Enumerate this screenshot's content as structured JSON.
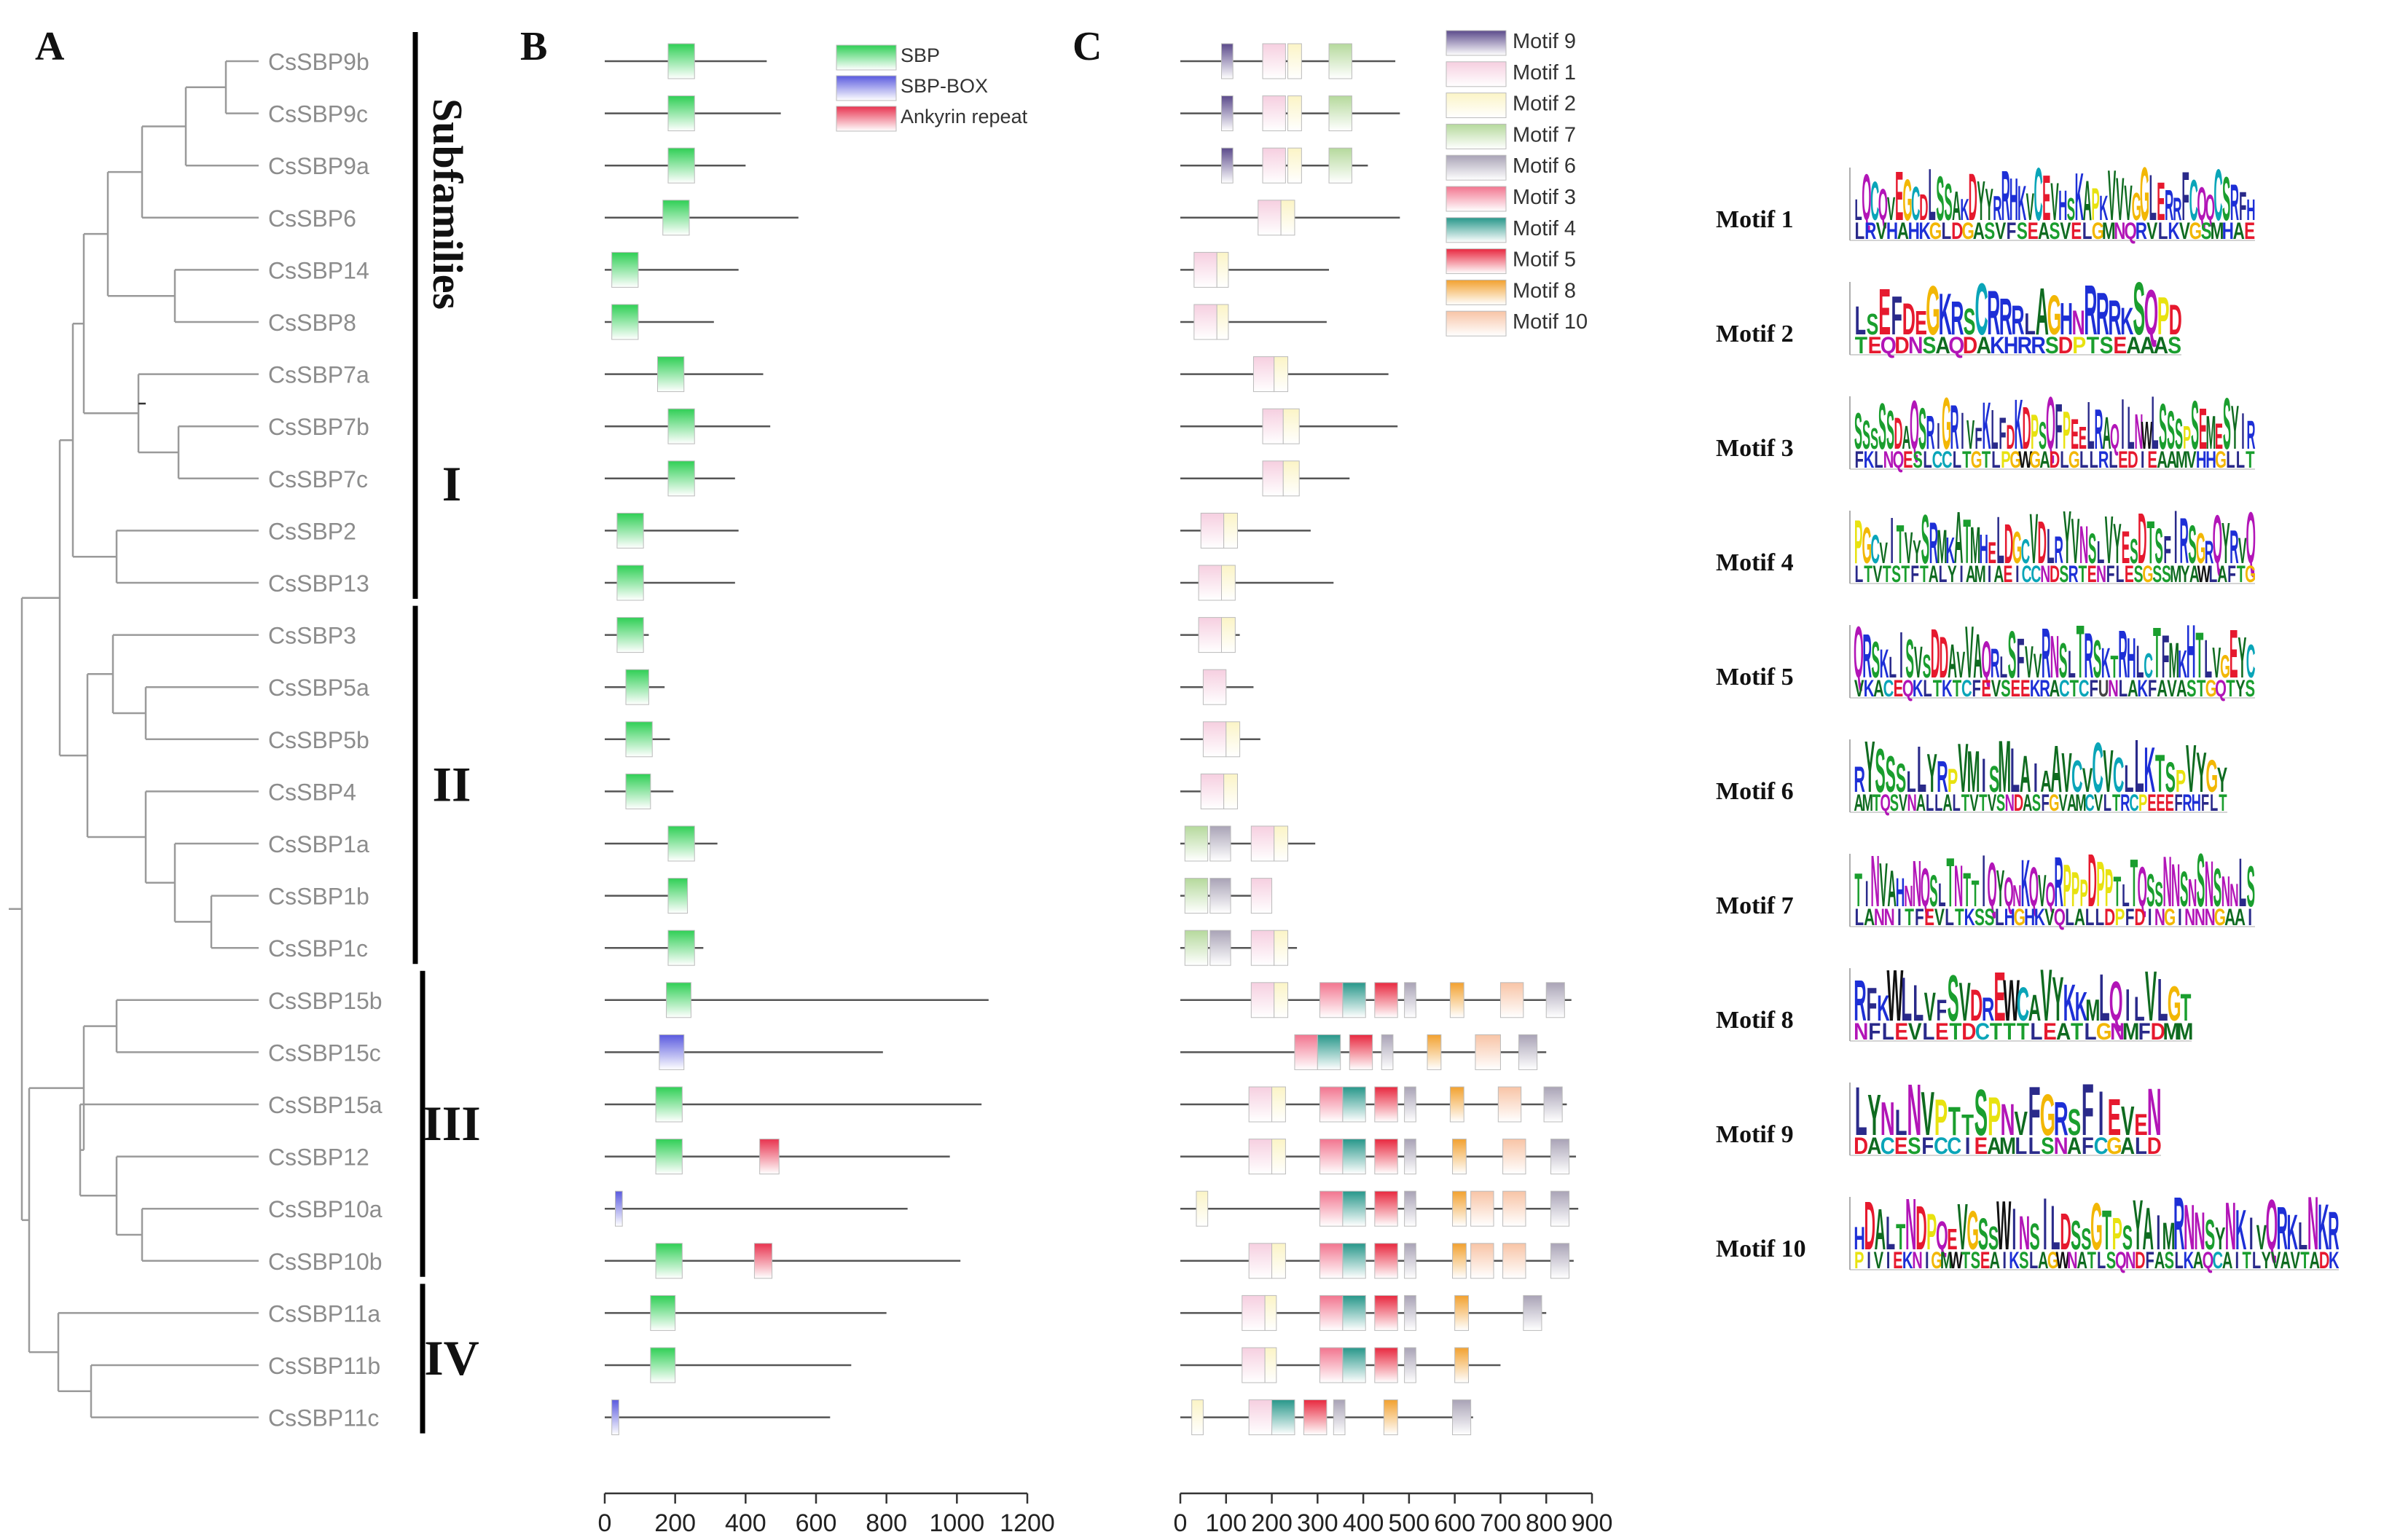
{
  "panels": {
    "A": "A",
    "B": "B",
    "C": "C"
  },
  "subfamily_title": "Subfamilies",
  "subfamilies": [
    {
      "label": "I",
      "first": 0,
      "last": 10
    },
    {
      "label": "II",
      "first": 11,
      "last": 17
    },
    {
      "label": "III",
      "first": 18,
      "last": 23
    },
    {
      "label": "IV",
      "first": 24,
      "last": 26
    }
  ],
  "genes": [
    "CsSBP9b",
    "CsSBP9c",
    "CsSBP9a",
    "CsSBP6",
    "CsSBP14",
    "CsSBP8",
    "CsSBP7a",
    "CsSBP7b",
    "CsSBP7c",
    "CsSBP2",
    "CsSBP13",
    "CsSBP3",
    "CsSBP5a",
    "CsSBP5b",
    "CsSBP4",
    "CsSBP1a",
    "CsSBP1b",
    "CsSBP1c",
    "CsSBP15b",
    "CsSBP15c",
    "CsSBP15a",
    "CsSBP12",
    "CsSBP10a",
    "CsSBP10b",
    "CsSBP11a",
    "CsSBP11b",
    "CsSBP11c"
  ],
  "domain_legend": [
    {
      "name": "SBP",
      "color": "#2fcf55"
    },
    {
      "name": "SBP-BOX",
      "color": "#5a5adf"
    },
    {
      "name": "Ankyrin repeat",
      "color": "#e8334f"
    }
  ],
  "domain_axis": {
    "min": 0,
    "max": 1200,
    "ticks": [
      "0",
      "200",
      "400",
      "600",
      "800",
      "1000",
      "1200"
    ]
  },
  "domain_data": [
    {
      "len": 460,
      "domains": [
        [
          "SBP",
          180,
          255
        ]
      ]
    },
    {
      "len": 500,
      "domains": [
        [
          "SBP",
          180,
          255
        ]
      ]
    },
    {
      "len": 400,
      "domains": [
        [
          "SBP",
          180,
          255
        ]
      ]
    },
    {
      "len": 550,
      "domains": [
        [
          "SBP",
          165,
          240
        ]
      ]
    },
    {
      "len": 380,
      "domains": [
        [
          "SBP",
          20,
          95
        ]
      ]
    },
    {
      "len": 310,
      "domains": [
        [
          "SBP",
          20,
          95
        ]
      ]
    },
    {
      "len": 450,
      "domains": [
        [
          "SBP",
          150,
          225
        ]
      ]
    },
    {
      "len": 470,
      "domains": [
        [
          "SBP",
          180,
          255
        ]
      ]
    },
    {
      "len": 370,
      "domains": [
        [
          "SBP",
          180,
          255
        ]
      ]
    },
    {
      "len": 380,
      "domains": [
        [
          "SBP",
          35,
          110
        ]
      ]
    },
    {
      "len": 370,
      "domains": [
        [
          "SBP",
          35,
          110
        ]
      ]
    },
    {
      "len": 125,
      "domains": [
        [
          "SBP",
          35,
          110
        ]
      ]
    },
    {
      "len": 170,
      "domains": [
        [
          "SBP",
          60,
          125
        ]
      ]
    },
    {
      "len": 185,
      "domains": [
        [
          "SBP",
          60,
          135
        ]
      ]
    },
    {
      "len": 195,
      "domains": [
        [
          "SBP",
          60,
          130
        ]
      ]
    },
    {
      "len": 320,
      "domains": [
        [
          "SBP",
          180,
          255
        ]
      ]
    },
    {
      "len": 230,
      "domains": [
        [
          "SBP",
          180,
          235
        ]
      ]
    },
    {
      "len": 280,
      "domains": [
        [
          "SBP",
          180,
          255
        ]
      ]
    },
    {
      "len": 1090,
      "domains": [
        [
          "SBP",
          175,
          245
        ]
      ]
    },
    {
      "len": 790,
      "domains": [
        [
          "SBP-BOX",
          155,
          225
        ]
      ]
    },
    {
      "len": 1070,
      "domains": [
        [
          "SBP",
          145,
          220
        ]
      ]
    },
    {
      "len": 980,
      "domains": [
        [
          "SBP",
          145,
          220
        ],
        [
          "Ankyrin repeat",
          440,
          495
        ]
      ]
    },
    {
      "len": 860,
      "domains": [
        [
          "SBP-BOX",
          30,
          50
        ]
      ]
    },
    {
      "len": 1010,
      "domains": [
        [
          "SBP",
          145,
          220
        ],
        [
          "Ankyrin repeat",
          425,
          475
        ]
      ]
    },
    {
      "len": 800,
      "domains": [
        [
          "SBP",
          130,
          200
        ]
      ]
    },
    {
      "len": 700,
      "domains": [
        [
          "SBP",
          130,
          200
        ]
      ]
    },
    {
      "len": 640,
      "domains": [
        [
          "SBP-BOX",
          20,
          40
        ]
      ]
    }
  ],
  "motif_legend": [
    {
      "name": "Motif 9",
      "color": "#5b4a8b"
    },
    {
      "name": "Motif 1",
      "color": "#f6cfe0"
    },
    {
      "name": "Motif 2",
      "color": "#fbf4c6"
    },
    {
      "name": "Motif 7",
      "color": "#b5d99c"
    },
    {
      "name": "Motif 6",
      "color": "#a9a3b6"
    },
    {
      "name": "Motif 3",
      "color": "#f2758f"
    },
    {
      "name": "Motif 4",
      "color": "#27978a"
    },
    {
      "name": "Motif 5",
      "color": "#e8283f"
    },
    {
      "name": "Motif 8",
      "color": "#f2a12f"
    },
    {
      "name": "Motif 10",
      "color": "#f8c4a6"
    }
  ],
  "motif_axis": {
    "min": 0,
    "max": 900,
    "ticks": [
      "0",
      "100",
      "200",
      "300",
      "400",
      "500",
      "600",
      "700",
      "800",
      "900"
    ]
  },
  "motif_data": [
    {
      "len": 470,
      "motifs": [
        [
          "Motif 9",
          90,
          115
        ],
        [
          "Motif 1",
          180,
          230
        ],
        [
          "Motif 2",
          235,
          265
        ],
        [
          "Motif 7",
          325,
          375
        ]
      ]
    },
    {
      "len": 480,
      "motifs": [
        [
          "Motif 9",
          90,
          115
        ],
        [
          "Motif 1",
          180,
          230
        ],
        [
          "Motif 2",
          235,
          265
        ],
        [
          "Motif 7",
          325,
          375
        ]
      ]
    },
    {
      "len": 410,
      "motifs": [
        [
          "Motif 9",
          90,
          115
        ],
        [
          "Motif 1",
          180,
          230
        ],
        [
          "Motif 2",
          235,
          265
        ],
        [
          "Motif 7",
          325,
          375
        ]
      ]
    },
    {
      "len": 480,
      "motifs": [
        [
          "Motif 1",
          170,
          220
        ],
        [
          "Motif 2",
          220,
          250
        ]
      ]
    },
    {
      "len": 325,
      "motifs": [
        [
          "Motif 1",
          30,
          80
        ],
        [
          "Motif 2",
          80,
          105
        ]
      ]
    },
    {
      "len": 320,
      "motifs": [
        [
          "Motif 1",
          30,
          80
        ],
        [
          "Motif 2",
          80,
          105
        ]
      ]
    },
    {
      "len": 455,
      "motifs": [
        [
          "Motif 1",
          160,
          205
        ],
        [
          "Motif 2",
          205,
          235
        ]
      ]
    },
    {
      "len": 475,
      "motifs": [
        [
          "Motif 1",
          180,
          225
        ],
        [
          "Motif 2",
          225,
          260
        ]
      ]
    },
    {
      "len": 370,
      "motifs": [
        [
          "Motif 1",
          180,
          225
        ],
        [
          "Motif 2",
          225,
          260
        ]
      ]
    },
    {
      "len": 285,
      "motifs": [
        [
          "Motif 1",
          45,
          95
        ],
        [
          "Motif 2",
          95,
          125
        ]
      ]
    },
    {
      "len": 335,
      "motifs": [
        [
          "Motif 1",
          40,
          90
        ],
        [
          "Motif 2",
          90,
          120
        ]
      ]
    },
    {
      "len": 130,
      "motifs": [
        [
          "Motif 1",
          40,
          90
        ],
        [
          "Motif 2",
          90,
          120
        ]
      ]
    },
    {
      "len": 160,
      "motifs": [
        [
          "Motif 1",
          50,
          100
        ]
      ]
    },
    {
      "len": 175,
      "motifs": [
        [
          "Motif 1",
          50,
          100
        ],
        [
          "Motif 2",
          100,
          130
        ]
      ]
    },
    {
      "len": 125,
      "motifs": [
        [
          "Motif 1",
          45,
          95
        ],
        [
          "Motif 2",
          95,
          125
        ]
      ]
    },
    {
      "len": 295,
      "motifs": [
        [
          "Motif 7",
          10,
          60
        ],
        [
          "Motif 6",
          65,
          110
        ],
        [
          "Motif 1",
          155,
          205
        ],
        [
          "Motif 2",
          205,
          235
        ]
      ]
    },
    {
      "len": 200,
      "motifs": [
        [
          "Motif 7",
          10,
          60
        ],
        [
          "Motif 6",
          65,
          110
        ],
        [
          "Motif 1",
          155,
          200
        ]
      ]
    },
    {
      "len": 255,
      "motifs": [
        [
          "Motif 7",
          10,
          60
        ],
        [
          "Motif 6",
          65,
          110
        ],
        [
          "Motif 1",
          155,
          205
        ],
        [
          "Motif 2",
          205,
          235
        ]
      ]
    },
    {
      "len": 855,
      "motifs": [
        [
          "Motif 1",
          155,
          205
        ],
        [
          "Motif 2",
          205,
          235
        ],
        [
          "Motif 3",
          305,
          355
        ],
        [
          "Motif 4",
          355,
          405
        ],
        [
          "Motif 5",
          425,
          475
        ],
        [
          "Motif 6",
          490,
          515
        ],
        [
          "Motif 8",
          590,
          620
        ],
        [
          "Motif 10",
          700,
          750
        ],
        [
          "Motif 6",
          800,
          840
        ]
      ]
    },
    {
      "len": 800,
      "motifs": [
        [
          "Motif 3",
          250,
          300
        ],
        [
          "Motif 4",
          300,
          350
        ],
        [
          "Motif 5",
          370,
          420
        ],
        [
          "Motif 6",
          440,
          465
        ],
        [
          "Motif 8",
          540,
          570
        ],
        [
          "Motif 10",
          645,
          700
        ],
        [
          "Motif 6",
          740,
          780
        ]
      ]
    },
    {
      "len": 845,
      "motifs": [
        [
          "Motif 1",
          150,
          200
        ],
        [
          "Motif 2",
          200,
          230
        ],
        [
          "Motif 3",
          305,
          355
        ],
        [
          "Motif 4",
          355,
          405
        ],
        [
          "Motif 5",
          425,
          475
        ],
        [
          "Motif 6",
          490,
          515
        ],
        [
          "Motif 8",
          590,
          620
        ],
        [
          "Motif 10",
          695,
          745
        ],
        [
          "Motif 6",
          795,
          835
        ]
      ]
    },
    {
      "len": 865,
      "motifs": [
        [
          "Motif 1",
          150,
          200
        ],
        [
          "Motif 2",
          200,
          230
        ],
        [
          "Motif 3",
          305,
          355
        ],
        [
          "Motif 4",
          355,
          405
        ],
        [
          "Motif 5",
          425,
          475
        ],
        [
          "Motif 6",
          490,
          515
        ],
        [
          "Motif 8",
          595,
          625
        ],
        [
          "Motif 10",
          705,
          755
        ],
        [
          "Motif 6",
          810,
          850
        ]
      ]
    },
    {
      "len": 870,
      "motifs": [
        [
          "Motif 2",
          35,
          60
        ],
        [
          "Motif 3",
          305,
          355
        ],
        [
          "Motif 4",
          355,
          405
        ],
        [
          "Motif 5",
          425,
          475
        ],
        [
          "Motif 6",
          490,
          515
        ],
        [
          "Motif 8",
          595,
          625
        ],
        [
          "Motif 10",
          635,
          685
        ],
        [
          "Motif 10",
          705,
          755
        ],
        [
          "Motif 6",
          810,
          850
        ]
      ]
    },
    {
      "len": 860,
      "motifs": [
        [
          "Motif 1",
          150,
          200
        ],
        [
          "Motif 2",
          200,
          230
        ],
        [
          "Motif 3",
          305,
          355
        ],
        [
          "Motif 4",
          355,
          405
        ],
        [
          "Motif 5",
          425,
          475
        ],
        [
          "Motif 6",
          490,
          515
        ],
        [
          "Motif 8",
          595,
          625
        ],
        [
          "Motif 10",
          635,
          685
        ],
        [
          "Motif 10",
          705,
          755
        ],
        [
          "Motif 6",
          810,
          850
        ]
      ]
    },
    {
      "len": 800,
      "motifs": [
        [
          "Motif 1",
          135,
          185
        ],
        [
          "Motif 2",
          185,
          210
        ],
        [
          "Motif 3",
          305,
          355
        ],
        [
          "Motif 4",
          355,
          405
        ],
        [
          "Motif 5",
          425,
          475
        ],
        [
          "Motif 6",
          490,
          515
        ],
        [
          "Motif 8",
          600,
          630
        ],
        [
          "Motif 6",
          750,
          790
        ]
      ]
    },
    {
      "len": 700,
      "motifs": [
        [
          "Motif 1",
          135,
          185
        ],
        [
          "Motif 2",
          185,
          210
        ],
        [
          "Motif 3",
          305,
          355
        ],
        [
          "Motif 4",
          355,
          405
        ],
        [
          "Motif 5",
          425,
          475
        ],
        [
          "Motif 6",
          490,
          515
        ],
        [
          "Motif 8",
          600,
          630
        ]
      ]
    },
    {
      "len": 640,
      "motifs": [
        [
          "Motif 2",
          25,
          50
        ],
        [
          "Motif 1",
          150,
          200
        ],
        [
          "Motif 4",
          200,
          250
        ],
        [
          "Motif 5",
          270,
          320
        ],
        [
          "Motif 6",
          335,
          360
        ],
        [
          "Motif 8",
          445,
          475
        ],
        [
          "Motif 6",
          595,
          635
        ]
      ]
    }
  ],
  "logos": [
    {
      "label": "Motif 1",
      "top": "LQCQVEGCDLSSAKDYYRRHKVCEVHSKAPKVVVGGLERRFCQQCSRFH",
      "bottom": "LRVHAHKGLDGASVFSEASVELGMNQRVLKVGSMHAE"
    },
    {
      "label": "Motif 2",
      "top": "LSEFDEGKRSCRRRLAGHNRRRKSQPD",
      "bottom": "TEQDNSAQDAKHRRSDPTSEAAAS"
    },
    {
      "label": "Motif 3",
      "top": "SSSSSDAQSRIGRIVFKLFDKDPSQFPEELRAQILNWLSSSPSEMESYIR",
      "bottom": "FKLNQESLCCLTGTLPGWGADLGLLRLEDIEAAMVHHGLLT"
    },
    {
      "label": "Motif 4",
      "top": "PGCVITVYSRMKATMHELDGCVDLRYVNSLVYESDTSFIRSGRQYRVQ",
      "bottom": "LTVTSTFTALYIAMIAEICCNDSRTENFLESGSSMYAWLAFTG"
    },
    {
      "label": "Motif 5",
      "top": "QRSKLISVSDDAVVAQRLSFVVRNSLTRSKTRHLCTFMKHTLVGEYC",
      "bottom": "VKACEQKLTKTCFEVSEEKRACTCFUNLAKFAVASTGQTYS"
    },
    {
      "label": "Motif 6",
      "top": "RYSSSLLYRPVMISMLAIAAVCVCVCLLKTSPVYGY",
      "bottom": "AMTQSVNALLALTVTVSNDASFGVAMCVLTRCPEEEFRHFLT"
    },
    {
      "label": "Motif 7",
      "top": "TINVAHNNQSLTNTTIQYQNKQVQRPPPDPPTLTQSSNNSNSNSNNLS",
      "bottom": "LANNITFEVLTKSSLHGHKVQLALLDPFDINGINNNGAAI"
    },
    {
      "label": "Motif 8",
      "top": "RFKWLLVFSVDREWCAVYKKMLQILVLGT",
      "bottom": "NFLEVLETDCTTTLEATLGNMFDMM"
    },
    {
      "label": "Motif 9",
      "top": "LYNLNVPTTSPNVFGRSFIEVEN",
      "bottom": "DACESFCCIEAMLLSNAFCGALD"
    },
    {
      "label": "Motif 10",
      "top": "HDALTNDPQEVGSSWINSILDSSGTPSYAIMRNNSYNKIVQRKLNKR",
      "bottom": "PIVIEKNIGMWTSEAIKSLAGWNATLSQNDFASLKAQCAITLYVAVTADK"
    }
  ]
}
